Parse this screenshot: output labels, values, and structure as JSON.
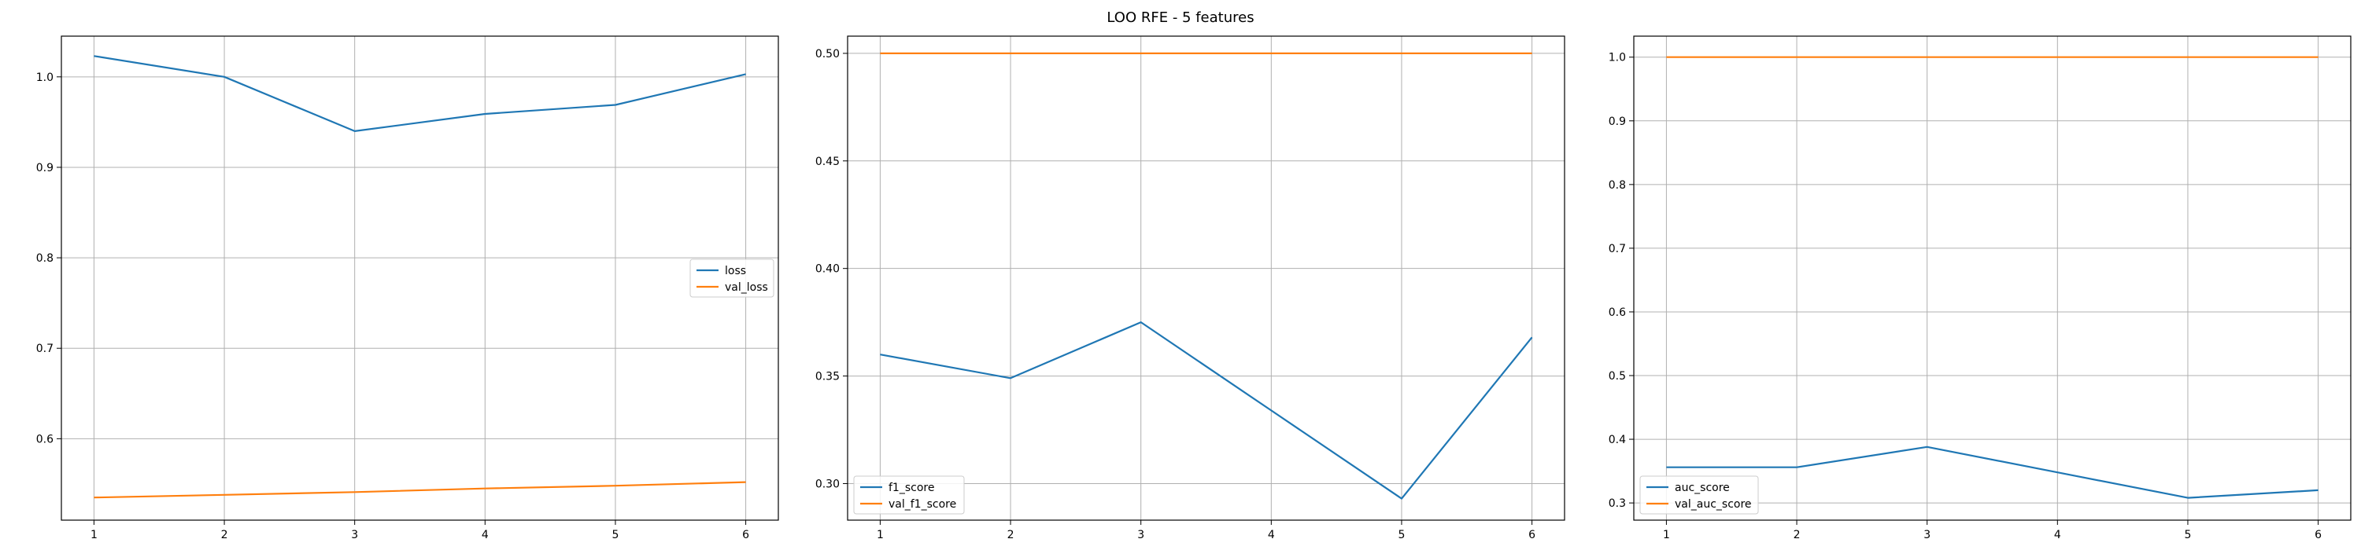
{
  "title": "LOO RFE - 5 features",
  "colors": {
    "series1": "#1f77b4",
    "series2": "#ff7f0e",
    "grid": "#b0b0b0",
    "axes": "#000000"
  },
  "chart_data": [
    {
      "type": "line",
      "title": "",
      "xlabel": "",
      "ylabel": "",
      "x": [
        1,
        2,
        3,
        4,
        5,
        6
      ],
      "xlim": [
        0.75,
        6.25
      ],
      "ylim": [
        0.51,
        1.045
      ],
      "xticks": [
        1,
        2,
        3,
        4,
        5,
        6
      ],
      "yticks": [
        0.6,
        0.7,
        0.8,
        0.9,
        1.0
      ],
      "grid": true,
      "legend": "center-right",
      "series": [
        {
          "name": "loss",
          "values": [
            1.023,
            1.0,
            0.94,
            0.959,
            0.969,
            1.003
          ]
        },
        {
          "name": "val_loss",
          "values": [
            0.535,
            0.538,
            0.541,
            0.545,
            0.548,
            0.552
          ]
        }
      ]
    },
    {
      "type": "line",
      "title": "",
      "xlabel": "",
      "ylabel": "",
      "x": [
        1,
        2,
        3,
        4,
        5,
        6
      ],
      "xlim": [
        0.75,
        6.25
      ],
      "ylim": [
        0.283,
        0.508
      ],
      "xticks": [
        1,
        2,
        3,
        4,
        5,
        6
      ],
      "yticks": [
        0.3,
        0.35,
        0.4,
        0.45,
        0.5
      ],
      "grid": true,
      "legend": "lower-left",
      "series": [
        {
          "name": "f1_score",
          "values": [
            0.36,
            0.349,
            0.375,
            0.334,
            0.293,
            0.368
          ]
        },
        {
          "name": "val_f1_score",
          "values": [
            0.5,
            0.5,
            0.5,
            0.5,
            0.5,
            0.5
          ]
        }
      ]
    },
    {
      "type": "line",
      "title": "",
      "xlabel": "",
      "ylabel": "",
      "x": [
        1,
        2,
        3,
        4,
        5,
        6
      ],
      "xlim": [
        0.75,
        6.25
      ],
      "ylim": [
        0.273,
        1.033
      ],
      "xticks": [
        1,
        2,
        3,
        4,
        5,
        6
      ],
      "yticks": [
        0.3,
        0.4,
        0.5,
        0.6,
        0.7,
        0.8,
        0.9,
        1.0
      ],
      "grid": true,
      "legend": "lower-left",
      "series": [
        {
          "name": "auc_score",
          "values": [
            0.356,
            0.356,
            0.388,
            0.348,
            0.308,
            0.32
          ]
        },
        {
          "name": "val_auc_score",
          "values": [
            1.0,
            1.0,
            1.0,
            1.0,
            1.0,
            1.0
          ]
        }
      ]
    }
  ]
}
